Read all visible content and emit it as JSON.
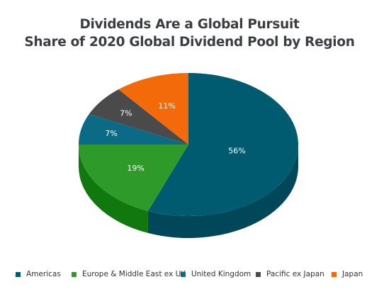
{
  "chart_data": {
    "type": "pie",
    "title": "Dividends Are a Global Pursuit",
    "subtitle": "Share of 2020 Global Dividend Pool by Region",
    "slices": [
      {
        "name": "Americas",
        "value": 56,
        "label": "56%",
        "color": "#005a70",
        "side_color": "#00475a"
      },
      {
        "name": "Europe & Middle East ex UK",
        "value": 19,
        "label": "19%",
        "color": "#2e9a2a",
        "side_color": "#10780f"
      },
      {
        "name": "United Kingdom",
        "value": 7,
        "label": "7%",
        "color": "#0b6b86",
        "side_color": "#08566b"
      },
      {
        "name": "Pacific ex Japan",
        "value": 7,
        "label": "7%",
        "color": "#4a4a4a",
        "side_color": "#333333"
      },
      {
        "name": "Japan",
        "value": 11,
        "label": "11%",
        "color": "#f26a0a",
        "side_color": "#c65400"
      }
    ],
    "legend_position": "bottom",
    "style": "3d-tilted"
  }
}
